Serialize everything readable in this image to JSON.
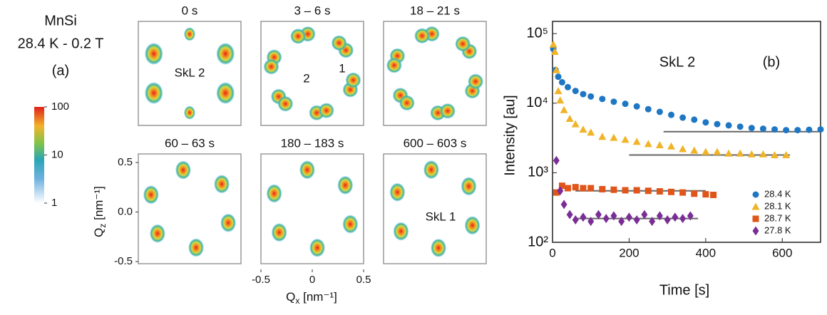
{
  "panel_a": {
    "sample": "MnSi",
    "condition": "28.4 K - 0.2 T",
    "label": "(a)",
    "colorbar": {
      "lim": [
        1,
        100
      ],
      "ticks": [
        1,
        10,
        100
      ],
      "log": true
    },
    "frames": [
      {
        "title": "0 s",
        "annotations": [
          "SkL 2"
        ]
      },
      {
        "title": "3 – 6 s",
        "annotations": [
          "2",
          "1"
        ]
      },
      {
        "title": "18 – 21 s",
        "annotations": []
      },
      {
        "title": "60 – 63 s",
        "annotations": []
      },
      {
        "title": "180 – 183 s",
        "annotations": []
      },
      {
        "title": "600 – 603 s",
        "annotations": [
          "SkL 1"
        ]
      }
    ],
    "xlabel": {
      "symbol": "Q",
      "sub": "x",
      "unit": " [nm⁻¹]"
    },
    "ylabel": {
      "symbol": "Q",
      "sub": "z",
      "unit": " [nm⁻¹]"
    },
    "xlim": [
      -0.5,
      0.5
    ],
    "xticks": [
      -0.5,
      0,
      0.5
    ],
    "ylim": [
      -0.5,
      0.5
    ],
    "yticks": [
      0.5,
      {
        "value": 0,
        "label": "0.0"
      },
      -0.5
    ]
  },
  "chart_data": {
    "type": "scatter",
    "title": "SkL 2",
    "label": "(b)",
    "xlabel": "Time [s]",
    "ylabel": "Intensity [au]",
    "xlim": [
      0,
      700
    ],
    "xticks": [
      0,
      200,
      400,
      600
    ],
    "ylim": [
      100,
      150000
    ],
    "yscale": "log",
    "yticks": [
      {
        "value": 100,
        "label": "10²"
      },
      {
        "value": 1000,
        "label": "10³"
      },
      {
        "value": 10000,
        "label": "10⁴"
      },
      {
        "value": 100000,
        "label": "10⁵"
      }
    ],
    "legend": "lower right",
    "series": [
      {
        "name": "28.4 K",
        "color": "#1f77c4",
        "marker": "circle",
        "x": [
          2,
          8,
          15,
          25,
          40,
          60,
          80,
          100,
          130,
          160,
          190,
          220,
          250,
          280,
          310,
          340,
          370,
          400,
          430,
          460,
          490,
          520,
          550,
          580,
          610,
          640,
          670,
          700
        ],
        "values": [
          60000,
          30000,
          24000,
          20000,
          17000,
          15000,
          13500,
          12500,
          11500,
          10500,
          9800,
          9000,
          8200,
          7500,
          6800,
          6200,
          5800,
          5300,
          5000,
          4800,
          4600,
          4400,
          4300,
          4200,
          4100,
          4100,
          4150,
          4200
        ]
      },
      {
        "name": "28.1 K",
        "color": "#f0b429",
        "marker": "triangle",
        "x": [
          2,
          6,
          10,
          15,
          20,
          30,
          45,
          60,
          80,
          100,
          130,
          160,
          190,
          220,
          250,
          280,
          310,
          340,
          370,
          400,
          430,
          460,
          490,
          520,
          550,
          580,
          610
        ],
        "values": [
          70000,
          55000,
          30000,
          15000,
          11000,
          8000,
          6000,
          5000,
          4200,
          3800,
          3300,
          3200,
          3000,
          2800,
          2600,
          2500,
          2400,
          2200,
          2100,
          2000,
          2000,
          1900,
          1900,
          1850,
          1850,
          1800,
          1800
        ]
      },
      {
        "name": "28.7 K",
        "color": "#e0561a",
        "marker": "square",
        "x": [
          10,
          25,
          40,
          60,
          80,
          100,
          130,
          160,
          190,
          220,
          250,
          280,
          310,
          340,
          370,
          400,
          420
        ],
        "values": [
          520,
          650,
          600,
          620,
          600,
          600,
          580,
          570,
          560,
          560,
          550,
          540,
          530,
          520,
          500,
          490,
          480
        ]
      },
      {
        "name": "27.8 K",
        "color": "#7b2d96",
        "marker": "diamond",
        "x": [
          10,
          20,
          30,
          45,
          60,
          80,
          100,
          120,
          140,
          160,
          180,
          200,
          220,
          240,
          260,
          280,
          300,
          320,
          340,
          360
        ],
        "values": [
          1500,
          550,
          350,
          250,
          210,
          230,
          200,
          250,
          220,
          240,
          200,
          230,
          210,
          250,
          200,
          240,
          210,
          230,
          220,
          240
        ]
      }
    ],
    "reference_lines": [
      {
        "y": 3900,
        "x": [
          290,
          700
        ]
      },
      {
        "y": 1800,
        "x": [
          200,
          620
        ]
      },
      {
        "y": 550,
        "x": [
          60,
          400
        ]
      },
      {
        "y": 220,
        "x": [
          60,
          380
        ]
      }
    ]
  }
}
